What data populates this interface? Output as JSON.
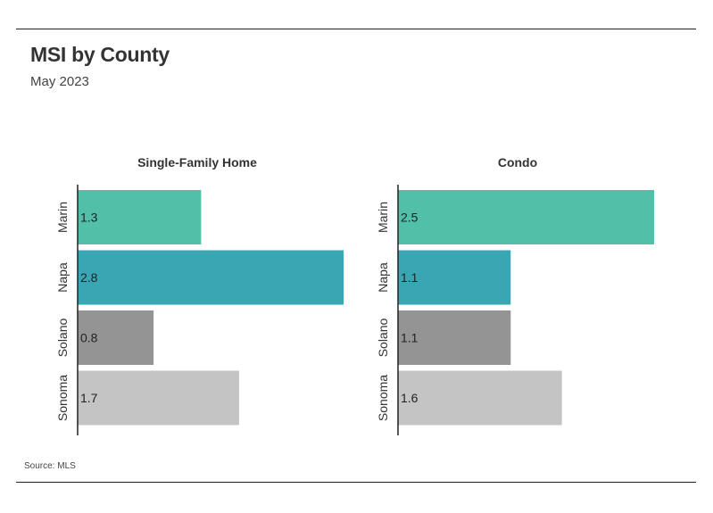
{
  "header": {
    "title": "MSI by County",
    "subtitle": "May 2023"
  },
  "footer": {
    "source": "Source:  MLS"
  },
  "chart_data": [
    {
      "type": "bar",
      "orientation": "horizontal",
      "title": "Single-Family Home",
      "categories": [
        "Marin",
        "Napa",
        "Solano",
        "Sonoma"
      ],
      "values": [
        1.3,
        2.8,
        0.8,
        1.7
      ],
      "colors": [
        "#52bfa8",
        "#3aa6b4",
        "#949494",
        "#c4c4c4"
      ],
      "xlim": [
        0,
        2.8
      ]
    },
    {
      "type": "bar",
      "orientation": "horizontal",
      "title": "Condo",
      "categories": [
        "Marin",
        "Napa",
        "Solano",
        "Sonoma"
      ],
      "values": [
        2.5,
        1.1,
        1.1,
        1.6
      ],
      "colors": [
        "#52bfa8",
        "#3aa6b4",
        "#949494",
        "#c4c4c4"
      ],
      "xlim": [
        0,
        2.5
      ]
    }
  ]
}
